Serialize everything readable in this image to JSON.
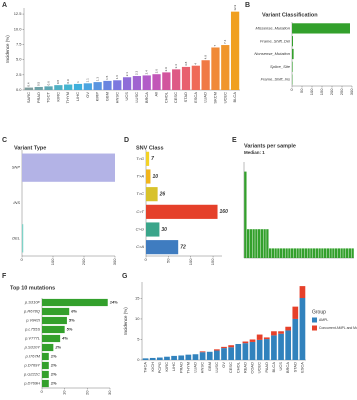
{
  "chart_data": [
    {
      "type": "bar",
      "panel": "A",
      "ylabel": "Incidence (%)",
      "categories": [
        "SARC",
        "PRAD",
        "TGCT",
        "KIRC",
        "THYM",
        "LIHC",
        "OV",
        "KIRP",
        "GBM",
        "HNSC",
        "UCS",
        "LUSC",
        "BRCA",
        "All",
        "CHOL",
        "CESC",
        "STAD",
        "ESCA",
        "LUAD",
        "SKCM",
        "UCEC",
        "BLCA"
      ],
      "values": [
        0.4,
        0.5,
        0.6,
        0.8,
        0.9,
        1.0,
        1.1,
        1.3,
        1.5,
        1.6,
        2.1,
        2.3,
        2.4,
        2.6,
        2.9,
        3.4,
        3.8,
        4.0,
        4.9,
        7.0,
        7.4,
        12.9
      ],
      "colors": [
        "#7f9e9e",
        "#6fa3a8",
        "#5fa8b4",
        "#4fb0c4",
        "#45b5d0",
        "#3fb0dc",
        "#4aa5e0",
        "#5a95e0",
        "#6a85e0",
        "#7c78df",
        "#8e6cd8",
        "#a064d0",
        "#b25cc8",
        "#c257b8",
        "#d2559e",
        "#de5a86",
        "#e8606e",
        "#ef6a58",
        "#f07a45",
        "#f08a38",
        "#f0962c",
        "#f0a020"
      ],
      "show_values": true,
      "ylim": [
        0,
        13.5
      ],
      "yticks": [
        {
          "value": 0,
          "label": "0.0"
        },
        2.5,
        {
          "value": 5,
          "label": "5.0"
        },
        7.5,
        {
          "value": 10,
          "label": "10.0"
        },
        12.5
      ]
    },
    {
      "type": "barh",
      "panel": "B",
      "title": "Variant Classification",
      "categories": [
        "Missense_Mutation",
        "Frame_Shift_Del",
        "Nonsense_Mutation",
        "Splice_Site",
        "Frame_Shift_Ins"
      ],
      "values": [
        290,
        5,
        8,
        3,
        2
      ],
      "color": "#33a02c",
      "xlim": [
        0,
        300
      ],
      "xticks": [
        0,
        50,
        100,
        150,
        200,
        250,
        300
      ]
    },
    {
      "type": "barh",
      "panel": "C",
      "title": "Variant Type",
      "categories": [
        "SNP",
        "INS",
        "DEL"
      ],
      "values": [
        300,
        0,
        4
      ],
      "colors": [
        "#b3b3e6",
        "#fdb462",
        "#7fd3c7"
      ],
      "xlim": [
        0,
        300
      ],
      "xticks": [
        0,
        100,
        200,
        300
      ]
    },
    {
      "type": "barh",
      "panel": "D",
      "title": "SNV Class",
      "categories": [
        "T>G",
        "T>A",
        "T>C",
        "C>T",
        "C>G",
        "C>A"
      ],
      "values": [
        7,
        10,
        26,
        160,
        30,
        72
      ],
      "colors": [
        "#f3d226",
        "#f1b51d",
        "#d8c22b",
        "#e5402a",
        "#3aa58a",
        "#3f7cc0"
      ],
      "show_values": true,
      "xlim": [
        0,
        170
      ],
      "xticks": [
        0,
        50,
        100,
        150
      ]
    },
    {
      "type": "bar",
      "panel": "E",
      "title": "Variants per sample",
      "subtitle": "Median: 1",
      "categories": [
        null,
        null,
        null,
        null,
        null,
        null,
        null,
        null,
        null,
        null,
        null,
        null,
        null,
        null,
        null,
        null,
        null,
        null,
        null,
        null,
        null,
        null,
        null,
        null,
        null,
        null,
        null,
        null,
        null,
        null,
        null,
        null,
        null,
        null,
        null,
        null,
        null,
        null,
        null,
        null
      ],
      "values": [
        9,
        3,
        3,
        3,
        3,
        3,
        3,
        3,
        3,
        1,
        1,
        1,
        1,
        1,
        1,
        1,
        1,
        1,
        1,
        1,
        1,
        1,
        1,
        1,
        1,
        1,
        1,
        1,
        1,
        1,
        1,
        1,
        1,
        1,
        1,
        1,
        1,
        1,
        1,
        1
      ],
      "color": "#33a02c",
      "ylim": [
        0,
        10
      ]
    },
    {
      "type": "barh",
      "panel": "F",
      "title": "Top 10 mutations",
      "categories": [
        "p.S310F",
        "p.R678Q",
        "p.V842I",
        "p.L755S",
        "p.V777L",
        "p.S310Y",
        "p.I767M",
        "p.D769Y",
        "p.G222C",
        "p.D769H"
      ],
      "values": [
        29,
        12,
        11,
        10,
        8,
        5,
        3,
        3,
        3,
        3
      ],
      "percent_labels": [
        "14%",
        "6%",
        "5%",
        "5%",
        "4%",
        "2%",
        "1%",
        "1%",
        "1%",
        "1%"
      ],
      "color": "#33a02c",
      "xlim": [
        0,
        30
      ],
      "xticks": [
        0,
        10,
        20,
        30
      ]
    },
    {
      "type": "bar",
      "panel": "G",
      "ylabel": "Incidence (%)",
      "legend_title": "Group",
      "categories": [
        "THCA",
        "KICH",
        "PCPG",
        "KIRC",
        "LIHC",
        "PRAD",
        "THYM",
        "LUAD",
        "HNSC",
        "GBM",
        "LUSC",
        "OV",
        "CESC",
        "CHOL",
        "READ",
        "COAD",
        "UCEC",
        "PAAD",
        "BLCA",
        "UCS",
        "BRCA",
        "STAD",
        "ESCA"
      ],
      "series": [
        {
          "name": "AMPL",
          "color": "#3182bd",
          "values": [
            0.4,
            0.5,
            0.6,
            0.8,
            1.0,
            1.1,
            1.3,
            1.4,
            1.9,
            2.0,
            2.3,
            2.9,
            3.1,
            3.9,
            4.1,
            4.4,
            4.9,
            5.1,
            6.0,
            6.4,
            7.2,
            10.0,
            15.1
          ]
        },
        {
          "name": "Concurrent AMPL and Mut",
          "color": "#e6402a",
          "values": [
            0,
            0,
            0,
            0,
            0,
            0,
            0,
            0,
            0.2,
            0,
            0.3,
            0.3,
            0.5,
            0,
            0.4,
            0.6,
            1.3,
            0.4,
            1.0,
            0.6,
            0.9,
            3.0,
            2.9
          ]
        }
      ],
      "ylim": [
        0,
        19
      ],
      "yticks": [
        0,
        5,
        10,
        15
      ]
    }
  ]
}
